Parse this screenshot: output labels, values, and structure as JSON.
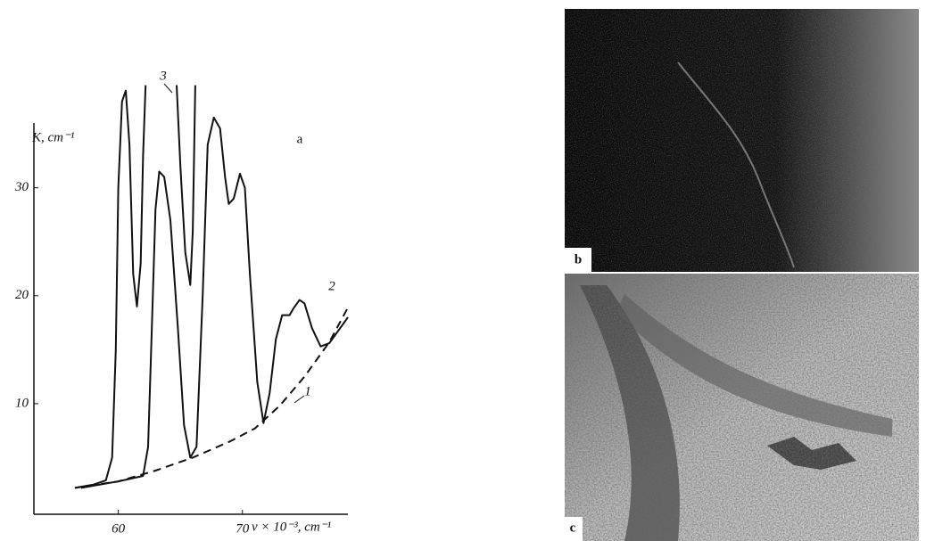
{
  "chart_data": {
    "type": "line",
    "y_label": "K, cm⁻¹",
    "x_label": "ν × 10⁻³, cm⁻¹",
    "panel_label": "a",
    "xlim": [
      53.2,
      78.5
    ],
    "ylim": [
      0,
      36
    ],
    "xticks": [
      60,
      70
    ],
    "yticks": [
      10,
      20,
      30
    ],
    "series": [
      {
        "name": "1",
        "color": "#111111",
        "dashed": true,
        "x": [
          56.5,
          60,
          63,
          66,
          69,
          71,
          73,
          75,
          77,
          78.5
        ],
        "values": [
          2.2,
          2.8,
          3.8,
          5,
          6.5,
          7.7,
          9.8,
          12.5,
          15.7,
          18.9
        ]
      },
      {
        "name": "2",
        "color": "#111111",
        "dashed": false,
        "x": [
          57,
          60,
          62,
          62.4,
          62.7,
          63,
          63.3,
          63.7,
          64.2,
          64.8,
          65.3,
          65.8,
          66.3,
          66.8,
          67.2,
          67.7,
          68.2,
          68.6,
          68.9,
          69.3,
          69.8,
          70.2,
          70.6,
          71.2,
          71.7,
          72.2,
          72.7,
          73.2,
          73.8,
          74.1,
          74.6,
          75,
          75.6,
          76.3,
          77,
          78.5
        ],
        "values": [
          2.2,
          2.8,
          3.3,
          6,
          17,
          28,
          31.5,
          31,
          27,
          17,
          8,
          5,
          6,
          20,
          34,
          36.5,
          35.5,
          31,
          28.5,
          29,
          31.3,
          30,
          22,
          12,
          8.2,
          11,
          16,
          18.2,
          18.2,
          18.8,
          19.6,
          19.3,
          17,
          15.3,
          15.6,
          18
        ]
      },
      {
        "name": "3",
        "color": "#111111",
        "dashed": false,
        "x": [
          56.5,
          58,
          59,
          59.5,
          59.8,
          60,
          60.3,
          60.6,
          60.9,
          61.2,
          61.5,
          61.8,
          62,
          62.2,
          63.5,
          64.7,
          65,
          65.4,
          65.8,
          66,
          66.2
        ],
        "values": [
          2.2,
          2.5,
          2.9,
          5,
          15,
          30,
          38,
          39,
          34,
          22,
          19,
          23,
          33,
          39.5,
          null,
          39.5,
          32,
          24,
          21,
          26,
          39.5
        ]
      }
    ]
  },
  "photos": [
    {
      "label": "b"
    },
    {
      "label": "c"
    }
  ]
}
